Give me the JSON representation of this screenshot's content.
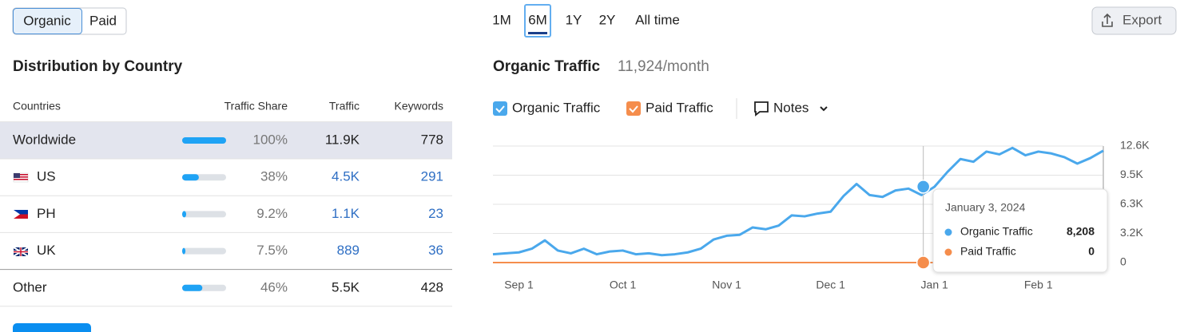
{
  "toggle": {
    "options": [
      "Organic",
      "Paid"
    ],
    "active": 0
  },
  "distribution": {
    "title": "Distribution by Country",
    "columns": [
      "Countries",
      "Traffic Share",
      "Traffic",
      "Keywords"
    ],
    "rows": [
      {
        "country": "Worldwide",
        "share": {
          "value": 100,
          "label": "100%"
        },
        "traffic": "11.9K",
        "keywords": "778"
      },
      {
        "country": "US",
        "share": {
          "value": 38,
          "label": "38%"
        },
        "traffic": "4.5K",
        "keywords": "291"
      },
      {
        "country": "PH",
        "share": {
          "value": 9.2,
          "label": "9.2%"
        },
        "traffic": "1.1K",
        "keywords": "23"
      },
      {
        "country": "UK",
        "share": {
          "value": 7.5,
          "label": "7.5%"
        },
        "traffic": "889",
        "keywords": "36"
      },
      {
        "country": "Other",
        "share": {
          "value": 46,
          "label": "46%"
        },
        "traffic": "5.5K",
        "keywords": "428"
      }
    ]
  },
  "periods": {
    "options": [
      "1M",
      "6M",
      "1Y",
      "2Y",
      "All time"
    ],
    "active": 1
  },
  "export": "Export",
  "chart_data": {
    "type": "line",
    "title": "Organic Traffic",
    "subtitle": "11,924/month",
    "x": [
      "Aug 25",
      "Aug 29",
      "Sep 1",
      "Sep 5",
      "Sep 9",
      "Sep 13",
      "Sep 17",
      "Sep 21",
      "Sep 25",
      "Sep 29",
      "Oct 1",
      "Oct 5",
      "Oct 9",
      "Oct 13",
      "Oct 17",
      "Oct 21",
      "Oct 25",
      "Oct 29",
      "Nov 1",
      "Nov 5",
      "Nov 9",
      "Nov 13",
      "Nov 17",
      "Nov 21",
      "Nov 25",
      "Nov 29",
      "Dec 1",
      "Dec 5",
      "Dec 9",
      "Dec 13",
      "Dec 17",
      "Dec 21",
      "Dec 25",
      "Dec 29",
      "Jan 1",
      "Jan 5",
      "Jan 9",
      "Jan 13",
      "Jan 17",
      "Jan 21",
      "Jan 25",
      "Jan 29",
      "Feb 1",
      "Feb 5",
      "Feb 9",
      "Feb 13",
      "Feb 17",
      "Feb 21"
    ],
    "series": [
      {
        "name": "Organic Traffic",
        "color": "#4aa8ec",
        "values": [
          900,
          1000,
          1100,
          1500,
          2400,
          1300,
          1000,
          1500,
          900,
          1200,
          1300,
          900,
          1000,
          800,
          900,
          1100,
          1500,
          2500,
          2900,
          3000,
          3800,
          3600,
          4000,
          5100,
          5000,
          5300,
          5500,
          7200,
          8500,
          7300,
          7100,
          7800,
          8000,
          7300,
          8200,
          9800,
          11200,
          10900,
          12000,
          11700,
          12400,
          11600,
          12000,
          11800,
          11400,
          10700,
          11300,
          12100
        ]
      },
      {
        "name": "Paid Traffic",
        "color": "#f58d4c",
        "values": [
          0,
          0,
          0,
          0,
          0,
          0,
          0,
          0,
          0,
          0,
          0,
          0,
          0,
          0,
          0,
          0,
          0,
          0,
          0,
          0,
          0,
          0,
          0,
          0,
          0,
          0,
          0,
          0,
          0,
          0,
          0,
          0,
          0,
          0,
          0,
          0,
          0,
          0,
          0,
          0,
          0,
          0,
          0,
          0,
          0,
          0,
          0,
          0
        ]
      }
    ],
    "ylim": [
      0,
      12600
    ],
    "yticks": [
      0,
      {
        "value": 3150,
        "label": "3.2K"
      },
      {
        "value": 6300,
        "label": "6.3K"
      },
      {
        "value": 9450,
        "label": "9.5K"
      },
      {
        "value": 12600,
        "label": "12.6K"
      }
    ],
    "xticks": [
      "Sep 1",
      "Oct 1",
      "Nov 1",
      "Dec 1",
      "Jan 1",
      "Feb 1"
    ],
    "grid": true,
    "notes": "Notes",
    "tooltip": {
      "title": "January 3, 2024",
      "values": [
        8208,
        0
      ],
      "value_labels": [
        "8,208",
        "0"
      ]
    }
  }
}
